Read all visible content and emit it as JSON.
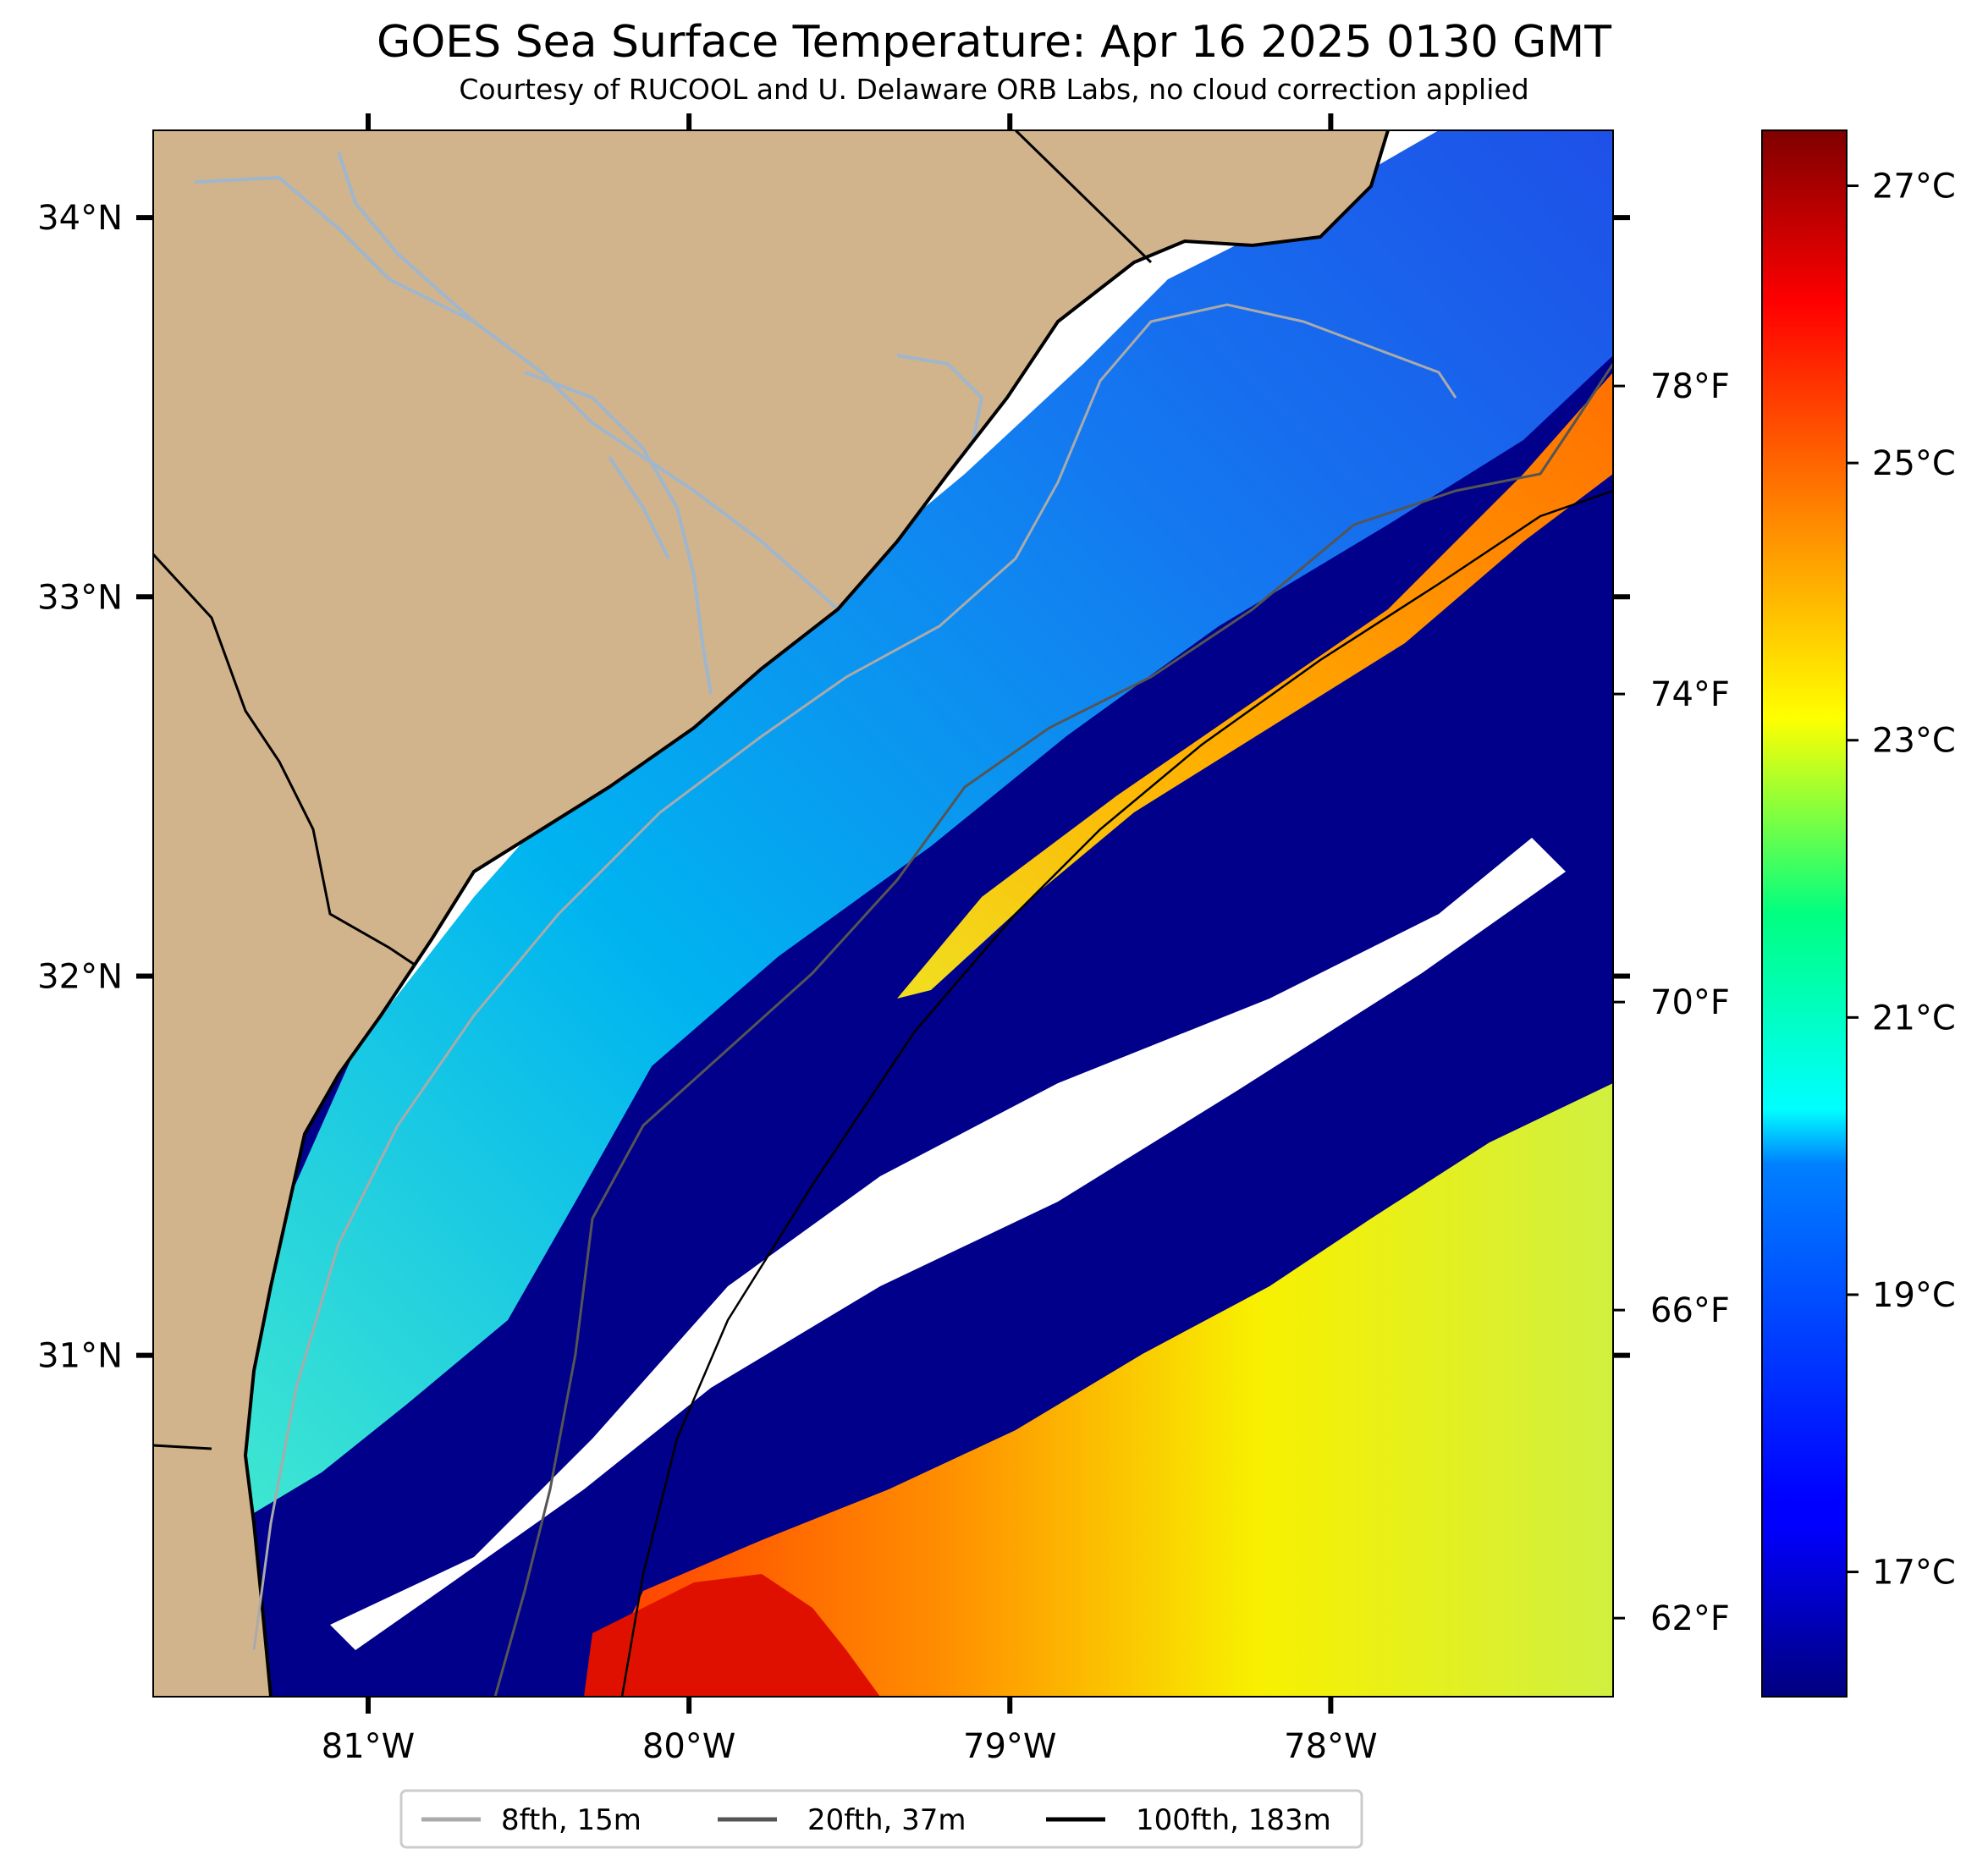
{
  "title": "GOES Sea Surface Temperature: Apr 16 2025 0130 GMT",
  "subtitle": "Courtesy of RUCOOL and U. Delaware ORB Labs, no cloud correction applied",
  "map": {
    "lon_range": [
      -81.67,
      -77.12
    ],
    "lat_range": [
      30.1,
      34.23
    ],
    "lat_ticks": [
      {
        "value": 34,
        "label": "34°N"
      },
      {
        "value": 33,
        "label": "33°N"
      },
      {
        "value": 32,
        "label": "32°N"
      },
      {
        "value": 31,
        "label": "31°N"
      }
    ],
    "lon_ticks": [
      {
        "value": -81,
        "label": "81°W"
      },
      {
        "value": -80,
        "label": "80°W"
      },
      {
        "value": -79,
        "label": "79°W"
      },
      {
        "value": -78,
        "label": "78°W"
      }
    ],
    "colors": {
      "land": "#d2b48c",
      "cold_water": "#00008b",
      "no_data": "#ffffff",
      "river": "#9fb6cd",
      "coastline": "#000000"
    }
  },
  "colorbar": {
    "colormap": "jet",
    "celsius_range": [
      16.1,
      27.4
    ],
    "celsius_ticks": [
      {
        "value": 27,
        "label": "27°C"
      },
      {
        "value": 25,
        "label": "25°C"
      },
      {
        "value": 23,
        "label": "23°C"
      },
      {
        "value": 21,
        "label": "21°C"
      },
      {
        "value": 19,
        "label": "19°C"
      },
      {
        "value": 17,
        "label": "17°C"
      }
    ],
    "fahrenheit_ticks": [
      {
        "value": 78,
        "label": "78°F"
      },
      {
        "value": 74,
        "label": "74°F"
      },
      {
        "value": 70,
        "label": "70°F"
      },
      {
        "value": 66,
        "label": "66°F"
      },
      {
        "value": 62,
        "label": "62°F"
      }
    ]
  },
  "legend": {
    "items": [
      {
        "label": "8fth, 15m",
        "color": "#aaaaaa"
      },
      {
        "label": "20fth, 37m",
        "color": "#555555"
      },
      {
        "label": "100fth, 183m",
        "color": "#000000"
      }
    ]
  }
}
